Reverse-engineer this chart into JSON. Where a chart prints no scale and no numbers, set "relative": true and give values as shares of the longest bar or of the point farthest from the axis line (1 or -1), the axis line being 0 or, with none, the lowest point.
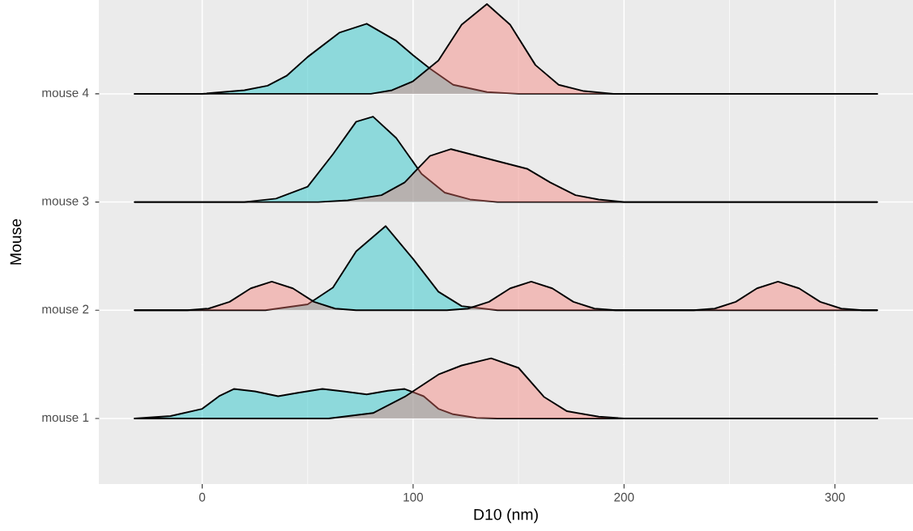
{
  "chart_data": [
    {
      "type": "area",
      "relative": true,
      "title": "mouse 4",
      "xlim": [
        -49,
        337
      ],
      "xticks": [
        0,
        100,
        200,
        300
      ],
      "tick_labels": false,
      "grid": "x",
      "series": [
        {
          "color": "#00BFC4",
          "x": [
            -32,
            0,
            20,
            31,
            40,
            50,
            65,
            78,
            92,
            100,
            108,
            119,
            135,
            150,
            320
          ],
          "values": [
            0,
            0,
            0.04,
            0.09,
            0.2,
            0.41,
            0.68,
            0.78,
            0.59,
            0.43,
            0.28,
            0.1,
            0.02,
            0,
            0
          ]
        },
        {
          "color": "#F8766D",
          "x": [
            -32,
            80,
            90,
            100,
            112,
            123,
            135,
            146,
            158,
            169,
            181,
            195,
            320
          ],
          "values": [
            0,
            0,
            0.04,
            0.14,
            0.37,
            0.77,
            1,
            0.77,
            0.32,
            0.1,
            0.03,
            0,
            0
          ]
        }
      ]
    },
    {
      "type": "area",
      "relative": true,
      "title": "mouse 3",
      "xlim": [
        -49,
        337
      ],
      "xticks": [
        0,
        100,
        200,
        300
      ],
      "tick_labels": false,
      "grid": "x",
      "series": [
        {
          "color": "#00BFC4",
          "x": [
            -32,
            20,
            35,
            50,
            62,
            73,
            81,
            92,
            104,
            115,
            127,
            140,
            320
          ],
          "values": [
            0,
            0,
            0.04,
            0.18,
            0.56,
            0.94,
            1,
            0.75,
            0.33,
            0.11,
            0.03,
            0,
            0
          ]
        },
        {
          "color": "#F8766D",
          "x": [
            -32,
            55,
            69,
            85,
            96,
            108,
            118,
            135,
            154,
            165,
            177,
            188,
            200,
            320
          ],
          "values": [
            0,
            0,
            0.02,
            0.08,
            0.23,
            0.54,
            0.62,
            0.51,
            0.39,
            0.23,
            0.08,
            0.03,
            0,
            0
          ]
        }
      ]
    },
    {
      "type": "area",
      "relative": true,
      "title": "mouse 2",
      "xlim": [
        -49,
        337
      ],
      "xticks": [
        0,
        100,
        200,
        300
      ],
      "tick_labels": false,
      "grid": "x",
      "series": [
        {
          "color": "#00BFC4",
          "x": [
            -32,
            30,
            50,
            62,
            73,
            87,
            100,
            112,
            123,
            140,
            320
          ],
          "values": [
            0,
            0,
            0.07,
            0.27,
            0.7,
            1,
            0.61,
            0.22,
            0.05,
            0,
            0
          ]
        },
        {
          "color": "#F8766D",
          "x": [
            -32,
            -7,
            3,
            13,
            23,
            33,
            43,
            53,
            63,
            73,
            116,
            126,
            136,
            146,
            156,
            166,
            176,
            186,
            196,
            233,
            243,
            253,
            263,
            273,
            283,
            293,
            303,
            313,
            320
          ],
          "values": [
            0,
            0,
            0.02,
            0.1,
            0.26,
            0.34,
            0.26,
            0.1,
            0.02,
            0,
            0,
            0.02,
            0.1,
            0.26,
            0.34,
            0.26,
            0.1,
            0.02,
            0,
            0,
            0.02,
            0.1,
            0.26,
            0.34,
            0.26,
            0.1,
            0.02,
            0,
            0
          ]
        }
      ]
    },
    {
      "type": "area",
      "relative": true,
      "title": "mouse 1",
      "xlabel": "D10 (nm)",
      "ylabel": "Mouse",
      "xlim": [
        -49,
        337
      ],
      "xticks": [
        0,
        100,
        200,
        300
      ],
      "tick_labels": "x",
      "grid": "x",
      "series": [
        {
          "color": "#00BFC4",
          "x": [
            -32,
            -15,
            0,
            8,
            15,
            25,
            36,
            46,
            57,
            67,
            78,
            88,
            96,
            105,
            112,
            119,
            130,
            140,
            320
          ],
          "values": [
            0,
            0.04,
            0.16,
            0.37,
            0.49,
            0.45,
            0.37,
            0.43,
            0.49,
            0.45,
            0.4,
            0.46,
            0.49,
            0.37,
            0.16,
            0.07,
            0.01,
            0,
            0
          ]
        },
        {
          "color": "#F8766D",
          "x": [
            -32,
            60,
            81,
            96,
            112,
            123,
            137,
            150,
            162,
            173,
            188,
            200,
            320
          ],
          "values": [
            0,
            0,
            0.09,
            0.36,
            0.73,
            0.88,
            1,
            0.84,
            0.36,
            0.12,
            0.03,
            0,
            0
          ]
        }
      ]
    }
  ]
}
